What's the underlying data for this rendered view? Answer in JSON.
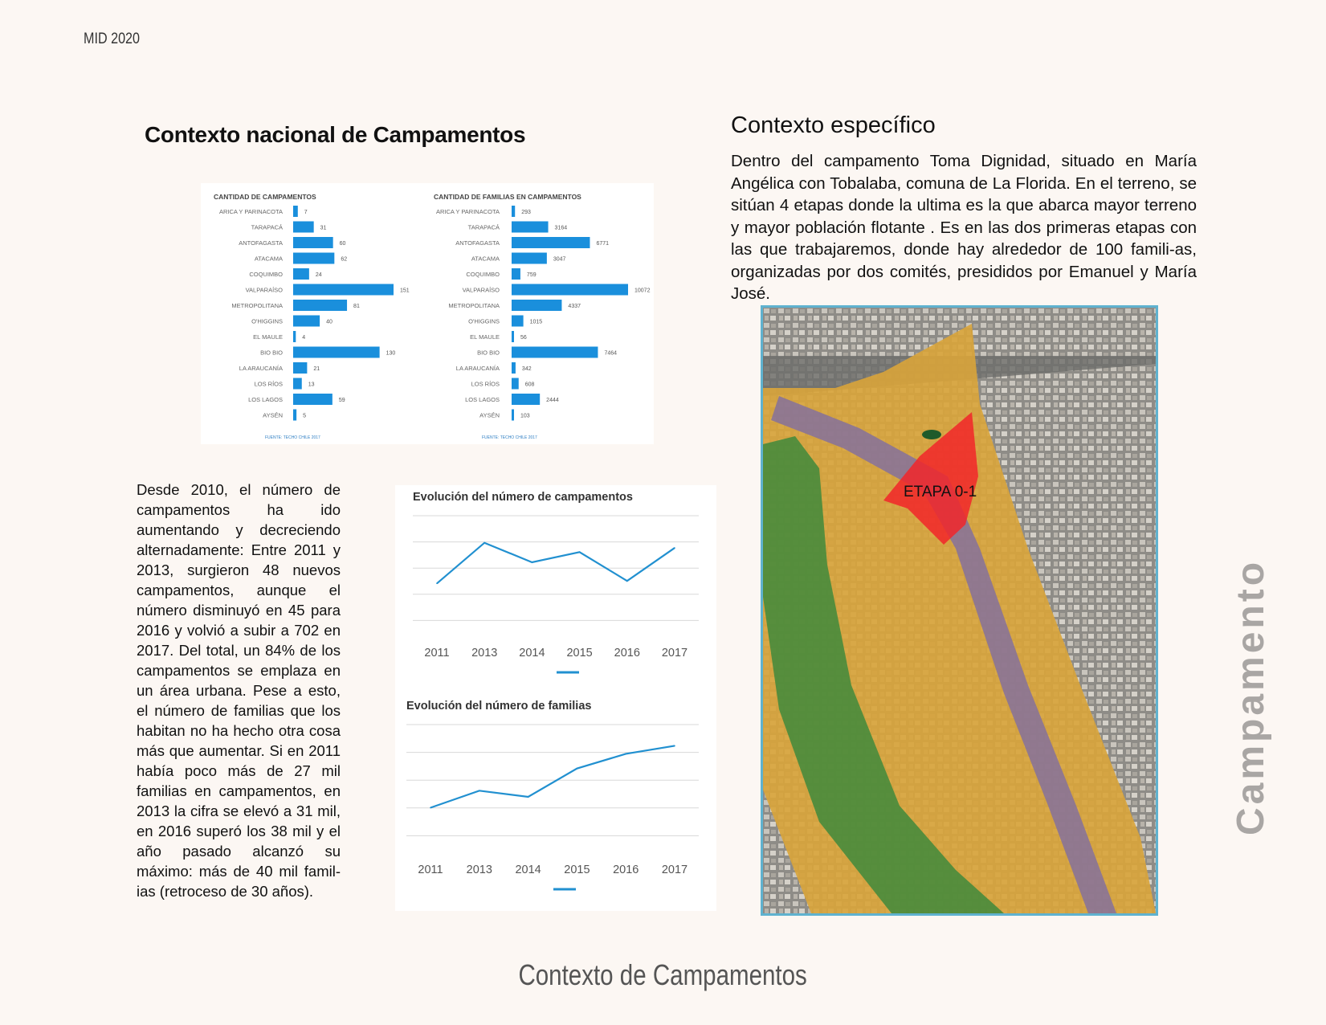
{
  "header": {
    "tag": "MID 2020"
  },
  "national": {
    "title": "Contexto nacional de Campamentos",
    "description": "Desde 2010, el número de campamentos ha ido aumentando y decreciendo alternadamente: Entre 2011 y 2013, surgieron 48 nuevos campamentos, aunque el número disminuyó en 45 para 2016 y volvió a subir a 702 en 2017. Del total, un 84% de los campamentos se emplaza en un área urbana. Pese a esto, el número de familias que los habitan no ha hecho otra cosa más que aumentar. Si en 2011 había poco más de 27 mil familias en campamentos, en 2013 la cifra se elevó a 31 mil, en 2016 superó los 38 mil y el año pasado alcanzó su máximo: más de 40 mil famil-ias (retroceso de 30 años)."
  },
  "specific": {
    "title": "Contexto específico",
    "description": "Dentro del campamento Toma Dignidad, situado en María Angélica con Tobalaba, comuna de La Florida. En el terreno, se sitúan 4 etapas donde la ultima es la que abarca mayor terreno y mayor población flotante . Es en las dos primeras etapas con las que trabajaremos, donde hay alrededor de 100 famili-as, organizadas por dos comités, presididos por Emanuel y María José.",
    "map_label": "ETAPA 0-1",
    "colors": {
      "stage_zone": "#f2262a",
      "terrain": "#d9a43a",
      "park": "#3f8a3c",
      "canal": "#7a6aa8"
    }
  },
  "footer": {
    "title": "Contexto de Campamentos"
  },
  "side": {
    "title": "Campamento"
  },
  "chart_data": [
    {
      "type": "bar",
      "orientation": "horizontal",
      "title": "CANTIDAD DE CAMPAMENTOS",
      "source": "FUENTE: TECHO CHILE 2017",
      "categories": [
        "ARICA Y PARINACOTA",
        "TARAPACÁ",
        "ANTOFAGASTA",
        "ATACAMA",
        "COQUIMBO",
        "VALPARAÍSO",
        "METROPOLITANA",
        "O'HIGGINS",
        "EL MAULE",
        "BIO BIO",
        "LA ARAUCANÍA",
        "LOS RÍOS",
        "LOS LAGOS",
        "AYSÉN"
      ],
      "values": [
        7,
        31,
        60,
        62,
        24,
        151,
        81,
        40,
        4,
        130,
        21,
        13,
        59,
        5
      ],
      "value_labels": [
        "7",
        "31",
        "60",
        "62",
        "24",
        "151",
        "81",
        "40",
        "4",
        "130",
        "21",
        "13",
        "59",
        "5"
      ],
      "color": "#1a8fdc"
    },
    {
      "type": "bar",
      "orientation": "horizontal",
      "title": "CANTIDAD DE FAMILIAS EN CAMPAMENTOS",
      "source": "FUENTE: TECHO CHILE 2017",
      "categories": [
        "ARICA Y PARINACOTA",
        "TARAPACÁ",
        "ANTOFAGASTA",
        "ATACAMA",
        "COQUIMBO",
        "VALPARAÍSO",
        "METROPOLITANA",
        "O'HIGGINS",
        "EL MAULE",
        "BIO BIO",
        "LA ARAUCANÍA",
        "LOS RÍOS",
        "LOS LAGOS",
        "AYSÉN"
      ],
      "values": [
        293,
        3164,
        6771,
        3047,
        759,
        10072,
        4337,
        1015,
        56,
        7464,
        342,
        608,
        2444,
        103
      ],
      "value_labels": [
        "293",
        "3164",
        "6771",
        "3047",
        "759",
        "10072",
        "4337",
        "1015",
        "56",
        "7464",
        "342",
        "608",
        "2444",
        "103"
      ],
      "color": "#1a8fdc"
    },
    {
      "type": "line",
      "title": "Evolución del número de campamentos",
      "x": [
        "2011",
        "2013",
        "2014",
        "2015",
        "2016",
        "2017"
      ],
      "series": [
        {
          "values": [
            660,
            708,
            685,
            697,
            663,
            702
          ]
        }
      ],
      "ylim": [
        610,
        740
      ],
      "grid": true,
      "color": "#2190d0"
    },
    {
      "type": "line",
      "title": "Evolución del número de familias",
      "x": [
        "2011",
        "2013",
        "2014",
        "2015",
        "2016",
        "2017"
      ],
      "series": [
        {
          "values": [
            27400,
            31000,
            29700,
            35700,
            38800,
            40500
          ]
        }
      ],
      "ylim": [
        20000,
        45000
      ],
      "grid": true,
      "color": "#2190d0"
    }
  ]
}
